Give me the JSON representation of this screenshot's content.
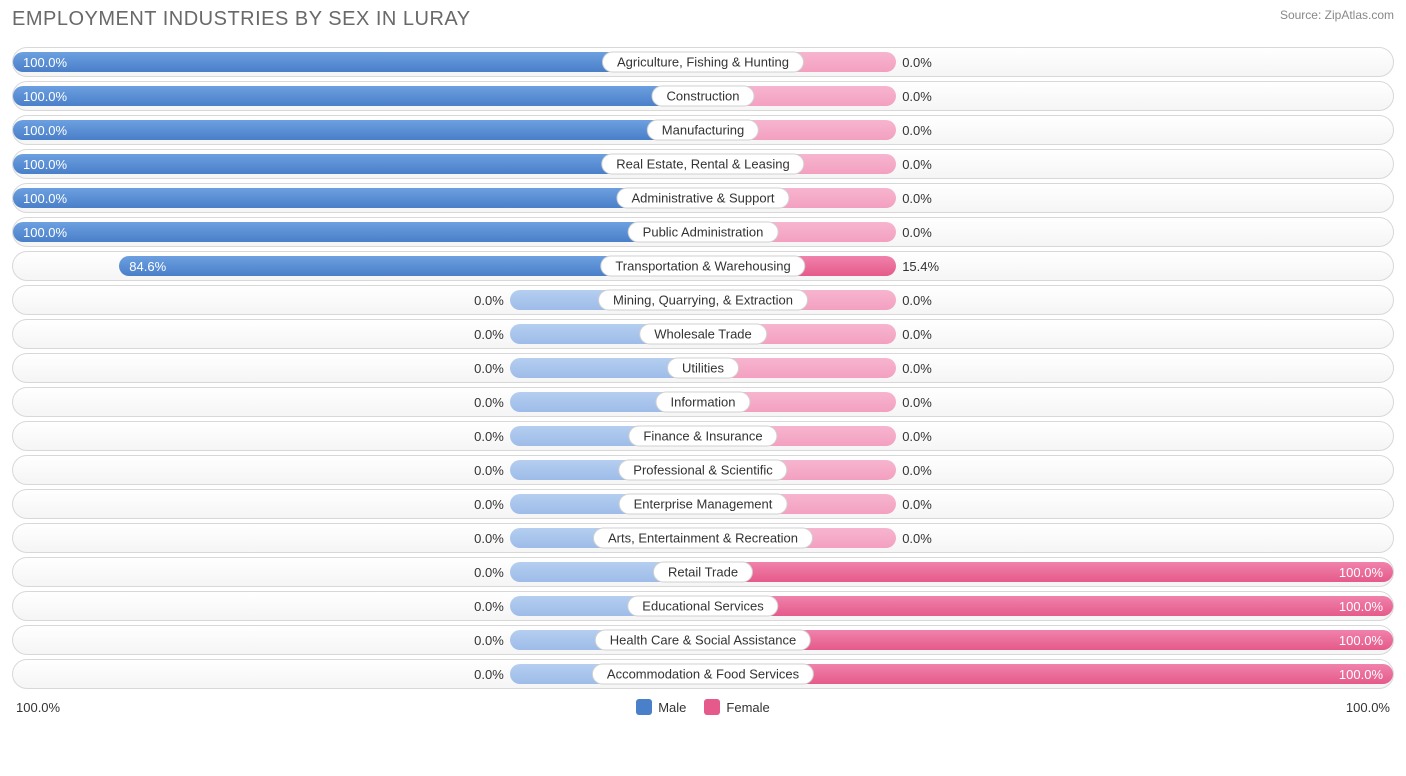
{
  "title": "EMPLOYMENT INDUSTRIES BY SEX IN LURAY",
  "source": "Source: ZipAtlas.com",
  "axis_left": "100.0%",
  "axis_right": "100.0%",
  "legend": {
    "male": "Male",
    "female": "Female"
  },
  "colors": {
    "male_full_light": "#6ca0e0",
    "male_full_dark": "#4a7fc9",
    "male_zero_light": "#b5cef0",
    "male_zero_dark": "#9dbce8",
    "female_full_light": "#f082ab",
    "female_full_dark": "#e55a8a",
    "female_zero_light": "#f7b5ce",
    "female_zero_dark": "#f3a0c0",
    "row_border": "#d8d8d8",
    "text": "#333333",
    "title_color": "#696969"
  },
  "min_bar_percent": 28,
  "rows": [
    {
      "label": "Agriculture, Fishing & Hunting",
      "male": 100.0,
      "female": 0.0
    },
    {
      "label": "Construction",
      "male": 100.0,
      "female": 0.0
    },
    {
      "label": "Manufacturing",
      "male": 100.0,
      "female": 0.0
    },
    {
      "label": "Real Estate, Rental & Leasing",
      "male": 100.0,
      "female": 0.0
    },
    {
      "label": "Administrative & Support",
      "male": 100.0,
      "female": 0.0
    },
    {
      "label": "Public Administration",
      "male": 100.0,
      "female": 0.0
    },
    {
      "label": "Transportation & Warehousing",
      "male": 84.6,
      "female": 15.4
    },
    {
      "label": "Mining, Quarrying, & Extraction",
      "male": 0.0,
      "female": 0.0
    },
    {
      "label": "Wholesale Trade",
      "male": 0.0,
      "female": 0.0
    },
    {
      "label": "Utilities",
      "male": 0.0,
      "female": 0.0
    },
    {
      "label": "Information",
      "male": 0.0,
      "female": 0.0
    },
    {
      "label": "Finance & Insurance",
      "male": 0.0,
      "female": 0.0
    },
    {
      "label": "Professional & Scientific",
      "male": 0.0,
      "female": 0.0
    },
    {
      "label": "Enterprise Management",
      "male": 0.0,
      "female": 0.0
    },
    {
      "label": "Arts, Entertainment & Recreation",
      "male": 0.0,
      "female": 0.0
    },
    {
      "label": "Retail Trade",
      "male": 0.0,
      "female": 100.0
    },
    {
      "label": "Educational Services",
      "male": 0.0,
      "female": 100.0
    },
    {
      "label": "Health Care & Social Assistance",
      "male": 0.0,
      "female": 100.0
    },
    {
      "label": "Accommodation & Food Services",
      "male": 0.0,
      "female": 100.0
    }
  ]
}
